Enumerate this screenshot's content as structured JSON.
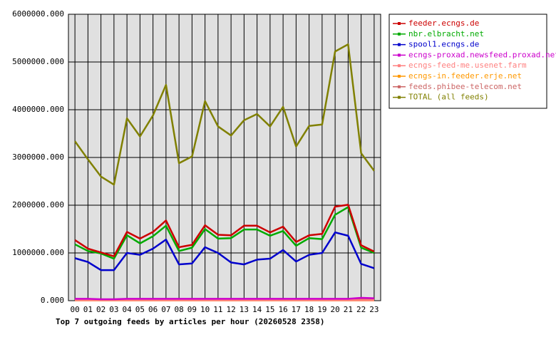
{
  "chart_data": {
    "type": "line",
    "title": "Top 7 outgoing feeds by articles per hour (20260528 2358)",
    "categories": [
      "00",
      "01",
      "02",
      "03",
      "04",
      "05",
      "06",
      "07",
      "08",
      "09",
      "10",
      "11",
      "12",
      "13",
      "14",
      "15",
      "16",
      "17",
      "18",
      "19",
      "20",
      "21",
      "22",
      "23"
    ],
    "ylim": [
      0,
      6000000
    ],
    "yticks": [
      {
        "value": 0,
        "label": "0.000"
      },
      {
        "value": 1000000,
        "label": "1000000.000"
      },
      {
        "value": 2000000,
        "label": "2000000.000"
      },
      {
        "value": 3000000,
        "label": "3000000.000"
      },
      {
        "value": 4000000,
        "label": "4000000.000"
      },
      {
        "value": 5000000,
        "label": "5000000.000"
      },
      {
        "value": 6000000,
        "label": "6000000.000"
      }
    ],
    "grid": true,
    "legend": "right",
    "series": [
      {
        "name": "feeder.ecngs.de",
        "color": "#cc0000",
        "values": [
          1270000,
          1090000,
          1010000,
          930000,
          1440000,
          1300000,
          1440000,
          1680000,
          1120000,
          1170000,
          1580000,
          1380000,
          1370000,
          1570000,
          1570000,
          1430000,
          1550000,
          1230000,
          1370000,
          1400000,
          1970000,
          2010000,
          1160000,
          1030000
        ]
      },
      {
        "name": "nbr.elbracht.net",
        "color": "#00aa00",
        "values": [
          1180000,
          1040000,
          990000,
          880000,
          1370000,
          1200000,
          1350000,
          1570000,
          1040000,
          1110000,
          1500000,
          1300000,
          1310000,
          1490000,
          1490000,
          1360000,
          1460000,
          1150000,
          1310000,
          1290000,
          1800000,
          1960000,
          1110000,
          1000000
        ]
      },
      {
        "name": "spool1.ecngs.de",
        "color": "#0000cc",
        "values": [
          890000,
          810000,
          640000,
          640000,
          1000000,
          960000,
          1090000,
          1280000,
          760000,
          780000,
          1120000,
          1000000,
          800000,
          760000,
          860000,
          880000,
          1060000,
          820000,
          960000,
          1000000,
          1430000,
          1360000,
          770000,
          680000
        ]
      },
      {
        "name": "ecngs-proxad.newsfeed.proxad.net",
        "color": "#cc00cc",
        "values": [
          40000,
          40000,
          30000,
          30000,
          40000,
          40000,
          40000,
          40000,
          40000,
          40000,
          40000,
          40000,
          40000,
          40000,
          40000,
          40000,
          40000,
          40000,
          40000,
          40000,
          40000,
          40000,
          60000,
          50000
        ]
      },
      {
        "name": "ecngs-feed-me.usenet.farm",
        "color": "#ff8080",
        "values": [
          10000,
          10000,
          10000,
          10000,
          10000,
          10000,
          10000,
          10000,
          10000,
          10000,
          10000,
          10000,
          10000,
          10000,
          10000,
          10000,
          10000,
          10000,
          10000,
          10000,
          10000,
          10000,
          10000,
          10000
        ]
      },
      {
        "name": "ecngs-in.feeder.erje.net",
        "color": "#ff9900",
        "values": [
          5000,
          5000,
          5000,
          5000,
          5000,
          5000,
          5000,
          5000,
          5000,
          5000,
          5000,
          5000,
          5000,
          5000,
          5000,
          5000,
          5000,
          5000,
          5000,
          5000,
          5000,
          5000,
          5000,
          5000
        ]
      },
      {
        "name": "feeds.phibee-telecom.net",
        "color": "#cc6666",
        "values": [
          30000,
          30000,
          20000,
          20000,
          30000,
          30000,
          30000,
          30000,
          30000,
          30000,
          30000,
          30000,
          30000,
          30000,
          30000,
          30000,
          30000,
          30000,
          30000,
          30000,
          30000,
          30000,
          40000,
          30000
        ]
      },
      {
        "name": "TOTAL (all feeds)",
        "color": "#808000",
        "values": [
          3340000,
          2960000,
          2600000,
          2430000,
          3820000,
          3440000,
          3880000,
          4520000,
          2880000,
          3020000,
          4180000,
          3650000,
          3460000,
          3780000,
          3910000,
          3650000,
          4060000,
          3230000,
          3660000,
          3690000,
          5220000,
          5370000,
          3090000,
          2720000
        ]
      }
    ]
  }
}
